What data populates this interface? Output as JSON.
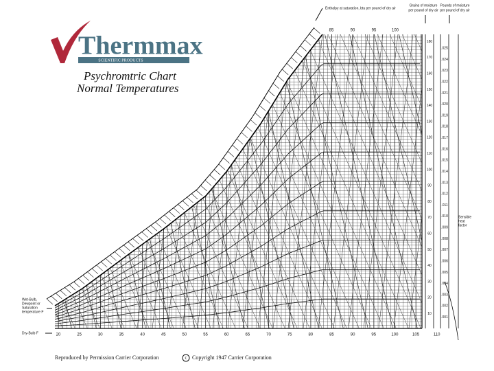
{
  "logo": {
    "brand": "Thermmax",
    "tagline": "SCIENTIFIC PRODUCTS"
  },
  "title": [
    "Psychromtric Chart",
    "Normal Temperatures"
  ],
  "header_notes": {
    "enthalpy": "Enthalpy at saturation, btu per pound of dry air",
    "grains": [
      "Grains of moisture",
      "per pound of dry air"
    ],
    "pounds": [
      "Pounds of moisture",
      "per pound of dry air"
    ]
  },
  "left_labels": {
    "wet_bulb": [
      "Wet-Bulb,",
      "Dewpoint or",
      "Saturation",
      "temperature F"
    ],
    "dry_bulb": "Dry-Bulb F"
  },
  "enthalpy_scale": [
    "85",
    "90",
    "95",
    "100"
  ],
  "dry_bulb_scale": [
    "20",
    "25",
    "30",
    "35",
    "40",
    "45",
    "50",
    "55",
    "60",
    "65",
    "70",
    "75",
    "80",
    "85",
    "90",
    "95",
    "100",
    "105",
    "110"
  ],
  "grains_scale": [
    "10",
    "20",
    "30",
    "40",
    "50",
    "60",
    "70",
    "80",
    "90",
    "100",
    "110",
    "120",
    "130",
    "140",
    "150",
    "160",
    "170",
    "180"
  ],
  "moisture_scale": [
    ".001",
    ".002",
    ".003",
    ".004",
    ".005",
    ".006",
    ".007",
    ".008",
    ".009",
    ".010",
    ".011",
    ".012",
    ".013",
    ".014",
    ".015",
    ".016",
    ".017",
    ".018",
    ".019",
    ".020",
    ".021",
    ".022",
    ".023",
    ".024",
    ".025"
  ],
  "sensible_heat_factor": [
    "Sensible",
    "heat",
    "factor"
  ],
  "footer": {
    "left": "Reproduced by Permission Carrier Corporation",
    "mark": "c",
    "right": "Copyright 1947 Carrier Corporation"
  }
}
